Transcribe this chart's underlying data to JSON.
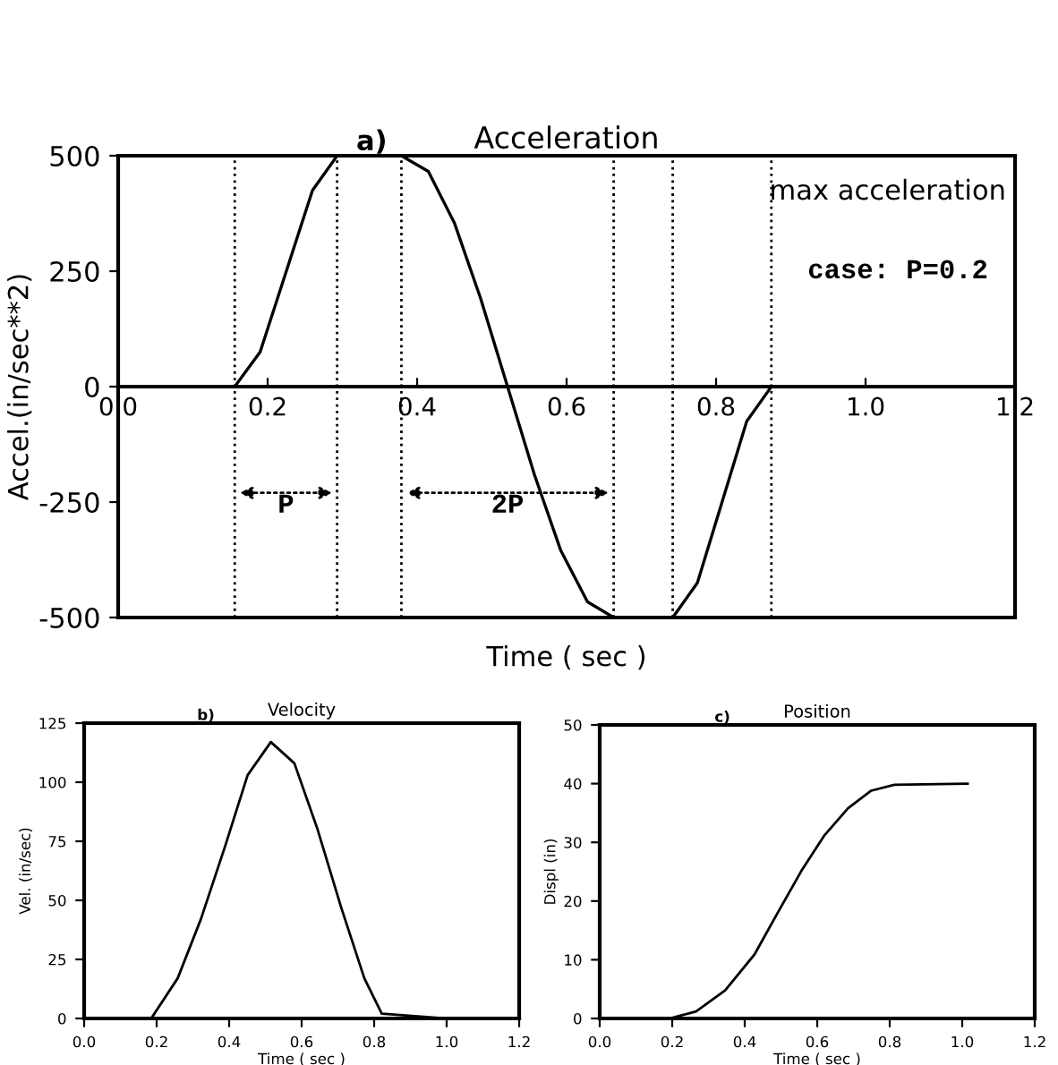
{
  "chart_data": [
    {
      "type": "line",
      "title": "Acceleration",
      "xlabel": "Time ( sec )",
      "ylabel": "Accel.(in/sec**2)",
      "x": [
        0.156,
        0.19,
        0.225,
        0.26,
        0.293,
        0.379,
        0.415,
        0.45,
        0.485,
        0.521,
        0.557,
        0.592,
        0.628,
        0.663,
        0.742,
        0.775,
        0.808,
        0.841,
        0.874
      ],
      "series": [
        {
          "color": "#000000",
          "values": [
            0,
            75,
            250,
            425,
            500,
            500,
            466,
            354,
            191,
            0,
            -191,
            -354,
            -466,
            -500,
            -500,
            -425,
            -250,
            -75,
            0
          ]
        }
      ],
      "xlim": [
        0,
        1.2
      ],
      "ylim": [
        -500,
        500
      ],
      "xticks": [
        {
          "value": 0,
          "label": "0.0"
        },
        {
          "value": 0.2,
          "label": "0.2"
        },
        {
          "value": 0.4,
          "label": "0.4"
        },
        {
          "value": 0.6,
          "label": "0.6"
        },
        {
          "value": 0.8,
          "label": "0.8"
        },
        {
          "value": 1.0,
          "label": "1.0"
        },
        {
          "value": 1.2,
          "label": "1.2"
        }
      ],
      "yticks": [
        -500,
        -250,
        0,
        250,
        500
      ],
      "ref_lines": [
        {
          "axis": "x",
          "value": 0.156,
          "line_style": "dotted"
        },
        {
          "axis": "x",
          "value": 0.293,
          "line_style": "dotted"
        },
        {
          "axis": "x",
          "value": 0.379,
          "line_style": "dotted"
        },
        {
          "axis": "x",
          "value": 0.663,
          "line_style": "dotted"
        },
        {
          "axis": "x",
          "value": 0.742,
          "line_style": "dotted"
        },
        {
          "axis": "x",
          "value": 0.874,
          "line_style": "dotted"
        }
      ],
      "annotations": [
        "a)",
        "max acceleration",
        "case: P=0.2",
        "P",
        "2P"
      ],
      "grid": false,
      "legend": false,
      "marker": "none",
      "line_style": "solid"
    },
    {
      "type": "line",
      "title": "Velocity",
      "xlabel": "Time ( sec )",
      "ylabel": "Vel. (in/sec)",
      "x": [
        0,
        0.185,
        0.258,
        0.322,
        0.387,
        0.451,
        0.515,
        0.58,
        0.644,
        0.709,
        0.773,
        0.821,
        1.0
      ],
      "series": [
        {
          "color": "#000000",
          "values": [
            0,
            0,
            17,
            42,
            72,
            103,
            117,
            108,
            80,
            47,
            17,
            2,
            0
          ]
        }
      ],
      "xlim": [
        0,
        1.2
      ],
      "ylim": [
        0,
        125
      ],
      "xticks": [
        {
          "value": 0,
          "label": "0.0"
        },
        {
          "value": 0.2,
          "label": "0.2"
        },
        {
          "value": 0.4,
          "label": "0.4"
        },
        {
          "value": 0.6,
          "label": "0.6"
        },
        {
          "value": 0.8,
          "label": "0.8"
        },
        {
          "value": 1.0,
          "label": "1.0"
        },
        {
          "value": 1.2,
          "label": "1.2"
        }
      ],
      "yticks": [
        0,
        25,
        50,
        75,
        100,
        125
      ],
      "annotations": [
        "b)"
      ],
      "grid": false,
      "legend": false,
      "marker": "none",
      "line_style": "solid"
    },
    {
      "type": "line",
      "title": "Position",
      "xlabel": "Time ( sec )",
      "ylabel": "Displ (in)",
      "x": [
        0,
        0.193,
        0.266,
        0.346,
        0.427,
        0.491,
        0.556,
        0.62,
        0.685,
        0.749,
        0.813,
        1.015
      ],
      "series": [
        {
          "color": "#000000",
          "values": [
            0,
            0,
            1.2,
            4.8,
            10.9,
            18,
            25.1,
            31.2,
            35.8,
            38.8,
            39.8,
            40
          ]
        }
      ],
      "xlim": [
        0,
        1.2
      ],
      "ylim": [
        0,
        50
      ],
      "xticks": [
        {
          "value": 0,
          "label": "0.0"
        },
        {
          "value": 0.2,
          "label": "0.2"
        },
        {
          "value": 0.4,
          "label": "0.4"
        },
        {
          "value": 0.6,
          "label": "0.6"
        },
        {
          "value": 0.8,
          "label": "0.8"
        },
        {
          "value": 1.0,
          "label": "1.0"
        },
        {
          "value": 1.2,
          "label": "1.2"
        }
      ],
      "yticks": [
        0,
        10,
        20,
        30,
        40,
        50
      ],
      "annotations": [
        "c)"
      ],
      "grid": false,
      "legend": false,
      "marker": "none",
      "line_style": "solid"
    }
  ]
}
